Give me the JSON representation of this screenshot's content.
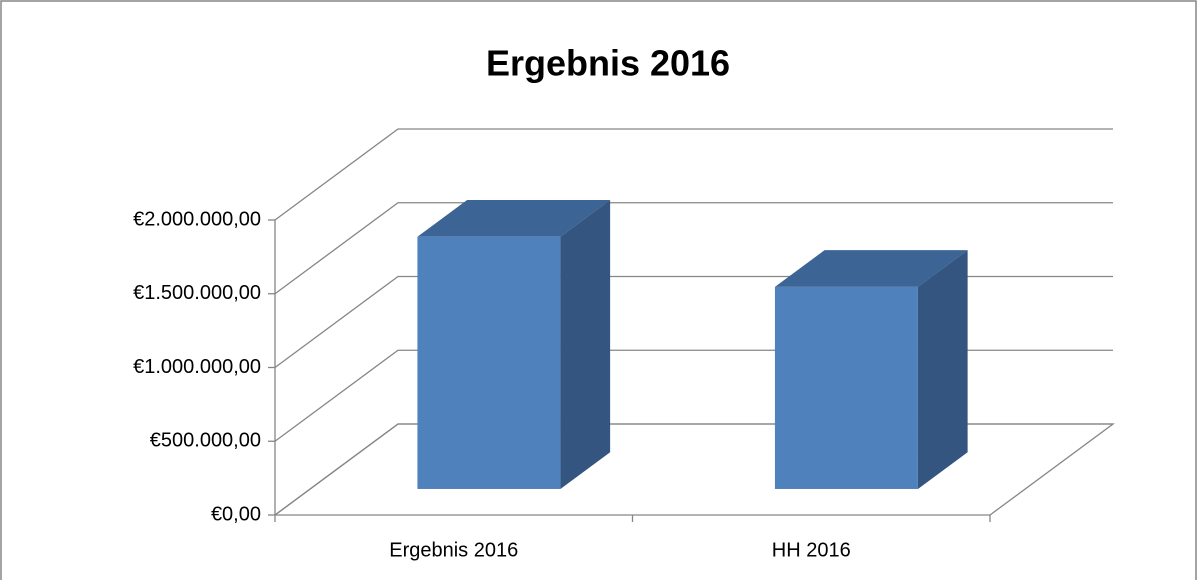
{
  "chart_data": {
    "type": "bar3d",
    "title": "Ergebnis 2016",
    "categories": [
      "Ergebnis 2016",
      "HH 2016"
    ],
    "values": [
      1710000,
      1370000
    ],
    "color": "#4f81bd",
    "ylim": [
      0,
      2000000
    ],
    "yticks": [
      {
        "value": 0,
        "label": "€0,00"
      },
      {
        "value": 500000,
        "label": "€500.000,00"
      },
      {
        "value": 1000000,
        "label": "€1.000.000,00"
      },
      {
        "value": 1500000,
        "label": "€1.500.000,00"
      },
      {
        "value": 2000000,
        "label": "€2.000.000,00"
      }
    ],
    "grid": true
  }
}
